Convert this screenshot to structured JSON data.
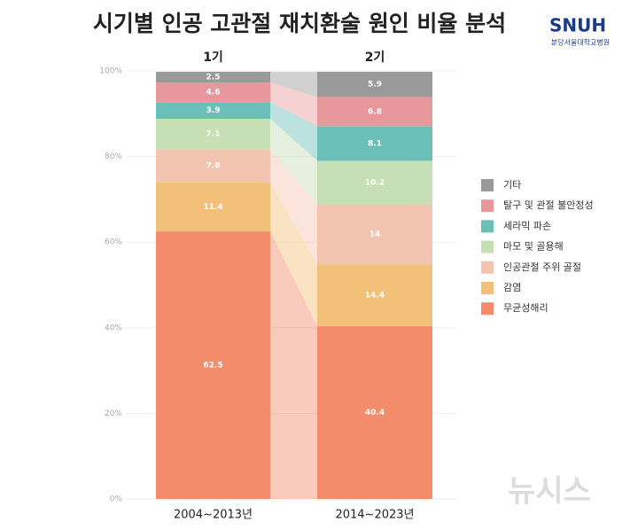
{
  "chart_data": {
    "type": "stacked-bar",
    "title": "시기별 인공 고관절 재치환술 원인 비율 분석",
    "groups": [
      "1기",
      "2기"
    ],
    "categories": [
      "2004~2013년",
      "2014~2023년"
    ],
    "series": [
      {
        "name": "무균성해리",
        "color": "#f28c6b",
        "values": [
          62.5,
          40.4
        ]
      },
      {
        "name": "감염",
        "color": "#f3c07a",
        "values": [
          11.4,
          14.4
        ]
      },
      {
        "name": "인공관절 주위 골절",
        "color": "#f3c4b0",
        "values": [
          7.8,
          14
        ]
      },
      {
        "name": "마모 및 골용해",
        "color": "#c6dfb5",
        "values": [
          7.1,
          10.2
        ]
      },
      {
        "name": "세라믹 파손",
        "color": "#6abfb8",
        "values": [
          3.9,
          8.1
        ]
      },
      {
        "name": "탈구 및 관절 불안정성",
        "color": "#e8989b",
        "values": [
          4.6,
          6.8
        ]
      },
      {
        "name": "기타",
        "color": "#9a9a9a",
        "values": [
          2.5,
          5.9
        ]
      }
    ],
    "ylim": [
      0,
      100
    ],
    "yticks": [
      {
        "value": 0,
        "label": "0%"
      },
      {
        "value": 20,
        "label": "20%"
      },
      {
        "value": 40,
        "label": "40%"
      },
      {
        "value": 60,
        "label": "60%"
      },
      {
        "value": 80,
        "label": "80%"
      },
      {
        "value": 100,
        "label": "100%"
      }
    ],
    "grid": true,
    "legend": "right"
  },
  "logo": {
    "name": "SNUH",
    "subtitle": "분당서울대학교병원"
  },
  "watermark": "뉴시스"
}
